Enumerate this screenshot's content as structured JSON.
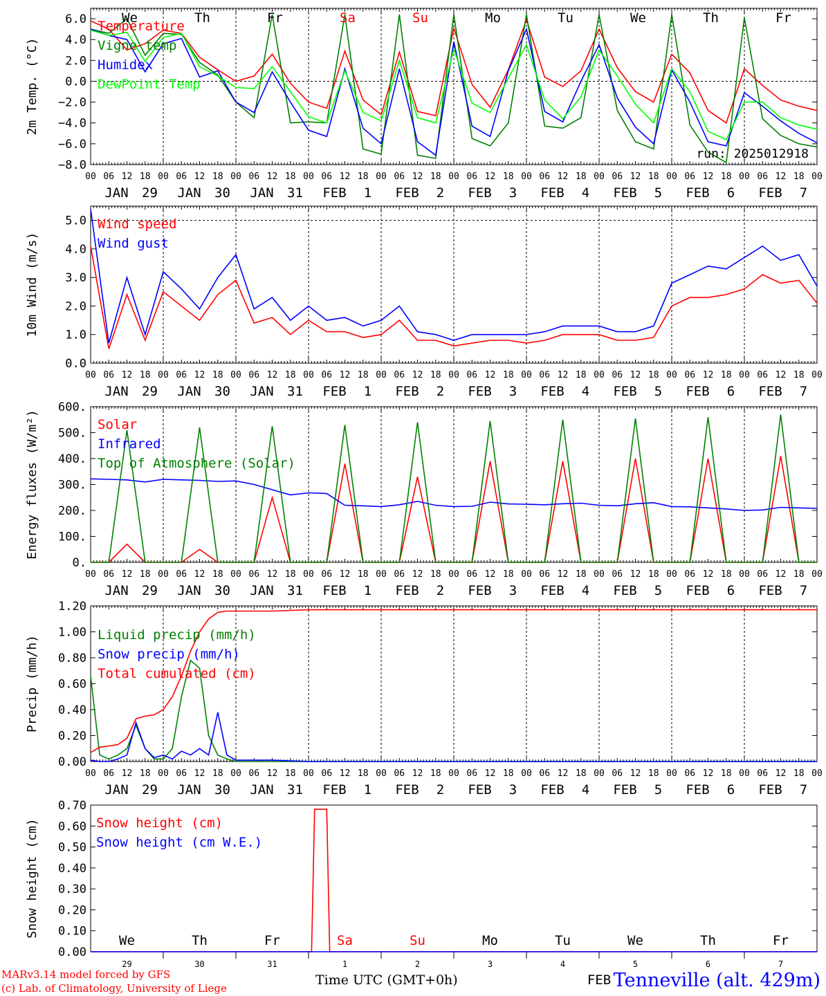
{
  "chart_data": [
    {
      "type": "line",
      "ylabel": "2m Temp. (°C)",
      "ylim": [
        -8,
        7
      ],
      "yticks": [
        "6.0",
        "4.0",
        "2.0",
        "0.0",
        "−2.0",
        "−4.0",
        "−6.0",
        "−8.0"
      ],
      "ytick_values": [
        6,
        4,
        2,
        0,
        -2,
        -4,
        -6,
        -8
      ],
      "ref_lines": [
        0
      ],
      "weekday_labels": [
        "We",
        "Th",
        "Fr",
        "Sa",
        "Su",
        "Mo",
        "Tu",
        "We",
        "Th",
        "Fr"
      ],
      "weekday_colors": [
        "#000000",
        "#000000",
        "#000000",
        "#ff0000",
        "#ff0000",
        "#000000",
        "#000000",
        "#000000",
        "#000000",
        "#000000"
      ],
      "annotation": "run: 2025012918",
      "x_hours": [
        0,
        6,
        12,
        18,
        24,
        30,
        36,
        42,
        48,
        54,
        60,
        66,
        72,
        78,
        84,
        90,
        96,
        102,
        108,
        114,
        120,
        126,
        132,
        138,
        144,
        150,
        156,
        162,
        168,
        174,
        180,
        186,
        192,
        198,
        204,
        210,
        216,
        222,
        228,
        234,
        240
      ],
      "series": [
        {
          "name": "Temperature",
          "color": "#ff0000",
          "values": [
            5.8,
            5.0,
            3.0,
            3.6,
            4.9,
            4.6,
            2.3,
            1.1,
            0.0,
            0.5,
            2.6,
            -0.2,
            -2.0,
            -2.6,
            2.9,
            -1.8,
            -3.2,
            2.8,
            -2.9,
            -3.3,
            5.1,
            -0.3,
            -2.5,
            1.1,
            5.9,
            0.4,
            -0.5,
            1.0,
            5.0,
            1.3,
            -1.0,
            -2.0,
            2.6,
            0.8,
            -2.8,
            -4.0,
            1.2,
            -0.4,
            -1.8,
            -2.4,
            -2.8
          ]
        },
        {
          "name": "Vigne temp",
          "color": "#008000",
          "values": [
            5.0,
            4.6,
            6.0,
            2.5,
            4.6,
            4.5,
            1.8,
            0.6,
            -2.0,
            -3.5,
            6.4,
            -4.0,
            -3.9,
            -4.0,
            6.4,
            -6.5,
            -7.0,
            6.4,
            -7.1,
            -7.4,
            6.4,
            -5.5,
            -6.2,
            -4.0,
            6.4,
            -4.3,
            -4.5,
            -3.5,
            6.4,
            -2.8,
            -5.8,
            -6.5,
            6.4,
            -4.2,
            -6.8,
            -7.8,
            6.1,
            -3.6,
            -5.2,
            -6.0,
            -6.3
          ]
        },
        {
          "name": "Humidex",
          "color": "#0000ff",
          "values": [
            5.0,
            4.4,
            4.0,
            0.9,
            3.6,
            4.1,
            0.4,
            1.0,
            -2.0,
            -3.0,
            0.9,
            -2.0,
            -4.7,
            -5.3,
            1.2,
            -4.5,
            -6.0,
            1.2,
            -5.8,
            -7.1,
            3.8,
            -4.3,
            -5.3,
            1.0,
            5.0,
            -2.9,
            -3.9,
            0.0,
            3.5,
            -1.6,
            -4.4,
            -6.0,
            1.1,
            -2.0,
            -5.8,
            -6.2,
            -1.1,
            -2.4,
            -3.8,
            -5.0,
            -5.9
          ]
        },
        {
          "name": "DewPoint Temp",
          "color": "#00ff00",
          "values": [
            4.9,
            4.4,
            4.7,
            1.9,
            4.2,
            4.6,
            1.4,
            0.5,
            -0.6,
            -0.7,
            1.4,
            -1.0,
            -3.4,
            -4.0,
            1.0,
            -3.0,
            -3.8,
            2.0,
            -3.5,
            -4.0,
            3.1,
            -2.1,
            -3.0,
            0.3,
            3.5,
            -1.8,
            -3.6,
            -1.5,
            3.0,
            0.5,
            -2.2,
            -4.0,
            1.2,
            -1.0,
            -4.8,
            -5.6,
            -2.0,
            -2.0,
            -3.5,
            -4.2,
            -4.6
          ]
        }
      ],
      "days": [
        {
          "month": "JAN",
          "day": "29"
        },
        {
          "month": "JAN",
          "day": "30"
        },
        {
          "month": "JAN",
          "day": "31"
        },
        {
          "month": "FEB",
          "day": "1"
        },
        {
          "month": "FEB",
          "day": "2"
        },
        {
          "month": "FEB",
          "day": "3"
        },
        {
          "month": "FEB",
          "day": "4"
        },
        {
          "month": "FEB",
          "day": "5"
        },
        {
          "month": "FEB",
          "day": "6"
        },
        {
          "month": "FEB",
          "day": "7"
        }
      ]
    },
    {
      "type": "line",
      "ylabel": "10m Wind (m/s)",
      "ylim": [
        0,
        5.5
      ],
      "yticks": [
        "5.0",
        "4.0",
        "3.0",
        "2.0",
        "1.0",
        "0.0"
      ],
      "ytick_values": [
        5,
        4,
        3,
        2,
        1,
        0
      ],
      "ref_lines": [
        5
      ],
      "x_hours": [
        0,
        6,
        12,
        18,
        24,
        30,
        36,
        42,
        48,
        54,
        60,
        66,
        72,
        78,
        84,
        90,
        96,
        102,
        108,
        114,
        120,
        126,
        132,
        138,
        144,
        150,
        156,
        162,
        168,
        174,
        180,
        186,
        192,
        198,
        204,
        210,
        216,
        222,
        228,
        234,
        240
      ],
      "series": [
        {
          "name": "Wind speed",
          "color": "#ff0000",
          "values": [
            4.1,
            0.5,
            2.4,
            0.8,
            2.5,
            2.0,
            1.5,
            2.4,
            2.9,
            1.4,
            1.6,
            1.0,
            1.5,
            1.1,
            1.1,
            0.9,
            1.0,
            1.5,
            0.8,
            0.8,
            0.6,
            0.7,
            0.8,
            0.8,
            0.7,
            0.8,
            1.0,
            1.0,
            1.0,
            0.8,
            0.8,
            0.9,
            2.0,
            2.3,
            2.3,
            2.4,
            2.6,
            3.1,
            2.8,
            2.9,
            2.1
          ]
        },
        {
          "name": "Wind gust",
          "color": "#0000ff",
          "values": [
            5.4,
            0.7,
            3.0,
            1.0,
            3.2,
            2.6,
            1.9,
            3.0,
            3.8,
            1.9,
            2.3,
            1.5,
            2.0,
            1.5,
            1.6,
            1.3,
            1.5,
            2.0,
            1.1,
            1.0,
            0.8,
            1.0,
            1.0,
            1.0,
            1.0,
            1.1,
            1.3,
            1.3,
            1.3,
            1.1,
            1.1,
            1.3,
            2.8,
            3.1,
            3.4,
            3.3,
            3.7,
            4.1,
            3.6,
            3.8,
            2.7
          ]
        }
      ],
      "days": [
        {
          "month": "JAN",
          "day": "29"
        },
        {
          "month": "JAN",
          "day": "30"
        },
        {
          "month": "JAN",
          "day": "31"
        },
        {
          "month": "FEB",
          "day": "1"
        },
        {
          "month": "FEB",
          "day": "2"
        },
        {
          "month": "FEB",
          "day": "3"
        },
        {
          "month": "FEB",
          "day": "4"
        },
        {
          "month": "FEB",
          "day": "5"
        },
        {
          "month": "FEB",
          "day": "6"
        },
        {
          "month": "FEB",
          "day": "7"
        }
      ]
    },
    {
      "type": "line",
      "ylabel": "Energy fluxes (W/m²)",
      "ylim": [
        0,
        600
      ],
      "yticks": [
        "600.",
        "500.",
        "400.",
        "300.",
        "200.",
        "100.",
        "0."
      ],
      "ytick_values": [
        600,
        500,
        400,
        300,
        200,
        100,
        0
      ],
      "ref_lines": [],
      "x_hours": [
        0,
        6,
        12,
        18,
        24,
        30,
        36,
        42,
        48,
        54,
        60,
        66,
        72,
        78,
        84,
        90,
        96,
        102,
        108,
        114,
        120,
        126,
        132,
        138,
        144,
        150,
        156,
        162,
        168,
        174,
        180,
        186,
        192,
        198,
        204,
        210,
        216,
        222,
        228,
        234,
        240
      ],
      "series": [
        {
          "name": "Solar",
          "color": "#ff0000",
          "values": [
            0,
            0,
            70,
            0,
            0,
            0,
            50,
            0,
            0,
            0,
            250,
            0,
            0,
            0,
            380,
            0,
            0,
            0,
            330,
            0,
            0,
            0,
            390,
            0,
            0,
            0,
            390,
            0,
            0,
            0,
            400,
            0,
            0,
            0,
            400,
            0,
            0,
            0,
            410,
            0,
            0
          ]
        },
        {
          "name": "Infrared",
          "color": "#0000ff",
          "values": [
            322,
            320,
            318,
            310,
            320,
            318,
            316,
            312,
            314,
            300,
            280,
            260,
            268,
            265,
            220,
            218,
            215,
            222,
            235,
            220,
            215,
            216,
            232,
            225,
            224,
            222,
            226,
            228,
            220,
            218,
            226,
            230,
            215,
            214,
            210,
            206,
            200,
            202,
            212,
            210,
            208
          ]
        },
        {
          "name": "Top of Atmosphere (Solar)",
          "color": "#008000",
          "values": [
            0,
            0,
            510,
            0,
            0,
            0,
            520,
            0,
            0,
            0,
            525,
            0,
            0,
            0,
            530,
            0,
            0,
            0,
            540,
            0,
            0,
            0,
            545,
            0,
            0,
            0,
            550,
            0,
            0,
            0,
            555,
            0,
            0,
            0,
            560,
            0,
            0,
            0,
            570,
            0,
            0
          ]
        }
      ],
      "days": [
        {
          "month": "JAN",
          "day": "29"
        },
        {
          "month": "JAN",
          "day": "30"
        },
        {
          "month": "JAN",
          "day": "31"
        },
        {
          "month": "FEB",
          "day": "1"
        },
        {
          "month": "FEB",
          "day": "2"
        },
        {
          "month": "FEB",
          "day": "3"
        },
        {
          "month": "FEB",
          "day": "4"
        },
        {
          "month": "FEB",
          "day": "5"
        },
        {
          "month": "FEB",
          "day": "6"
        },
        {
          "month": "FEB",
          "day": "7"
        }
      ]
    },
    {
      "type": "line",
      "ylabel": "Precip (mm/h)",
      "ylim": [
        0,
        1.2
      ],
      "yticks": [
        "1.20",
        "1.00",
        "0.80",
        "0.60",
        "0.40",
        "0.20",
        "0.00"
      ],
      "ytick_values": [
        1.2,
        1.0,
        0.8,
        0.6,
        0.4,
        0.2,
        0.0
      ],
      "ref_lines": [],
      "x_hours": [
        0,
        3,
        6,
        9,
        12,
        15,
        18,
        21,
        24,
        27,
        30,
        33,
        36,
        39,
        42,
        45,
        48,
        54,
        60,
        72,
        96,
        240
      ],
      "series": [
        {
          "name": "Liquid precip (mm/h)",
          "color": "#008000",
          "values": [
            0.66,
            0.05,
            0.02,
            0.05,
            0.1,
            0.28,
            0.1,
            0.02,
            0.02,
            0.1,
            0.5,
            0.78,
            0.72,
            0.2,
            0.05,
            0.02,
            0.0,
            0.0,
            0.0,
            0.0,
            0.0,
            0.0
          ]
        },
        {
          "name": "Snow precip (mm/h)",
          "color": "#0000ff",
          "values": [
            0.01,
            0.0,
            0.0,
            0.02,
            0.05,
            0.3,
            0.1,
            0.03,
            0.05,
            0.02,
            0.08,
            0.05,
            0.1,
            0.05,
            0.38,
            0.05,
            0.01,
            0.01,
            0.01,
            0.0,
            0.0,
            0.0
          ]
        },
        {
          "name": "Total cumulated (cm)",
          "color": "#ff0000",
          "values": [
            0.07,
            0.11,
            0.12,
            0.13,
            0.18,
            0.33,
            0.35,
            0.36,
            0.4,
            0.5,
            0.66,
            0.85,
            1.0,
            1.1,
            1.15,
            1.16,
            1.16,
            1.16,
            1.16,
            1.17,
            1.17,
            1.17
          ]
        }
      ],
      "days": [
        {
          "month": "JAN",
          "day": "29"
        },
        {
          "month": "JAN",
          "day": "30"
        },
        {
          "month": "JAN",
          "day": "31"
        },
        {
          "month": "FEB",
          "day": "1"
        },
        {
          "month": "FEB",
          "day": "2"
        },
        {
          "month": "FEB",
          "day": "3"
        },
        {
          "month": "FEB",
          "day": "4"
        },
        {
          "month": "FEB",
          "day": "5"
        },
        {
          "month": "FEB",
          "day": "6"
        },
        {
          "month": "FEB",
          "day": "7"
        }
      ]
    },
    {
      "type": "line",
      "ylabel": "Snow height (cm)",
      "ylim": [
        0,
        0.7
      ],
      "yticks": [
        "0.70",
        "0.60",
        "0.50",
        "0.40",
        "0.30",
        "0.20",
        "0.10",
        "0.00"
      ],
      "ytick_values": [
        0.7,
        0.6,
        0.5,
        0.4,
        0.3,
        0.2,
        0.1,
        0.0
      ],
      "ref_lines": [],
      "x_hours": [
        0,
        73,
        74,
        78,
        79,
        240
      ],
      "series": [
        {
          "name": "Snow height (cm)",
          "color": "#ff0000",
          "values": [
            0.0,
            0.0,
            0.68,
            0.68,
            0.0,
            0.0
          ]
        },
        {
          "name": "Snow height (cm W.E.)",
          "color": "#0000ff",
          "values": [
            0.0,
            0.0,
            0.0,
            0.0,
            0.0,
            0.0
          ]
        }
      ],
      "weekday_labels": [
        "We",
        "Th",
        "Fr",
        "Sa",
        "Su",
        "Mo",
        "Tu",
        "We",
        "Th",
        "Fr"
      ],
      "weekday_colors": [
        "#000000",
        "#000000",
        "#000000",
        "#ff0000",
        "#ff0000",
        "#000000",
        "#000000",
        "#000000",
        "#000000",
        "#000000"
      ],
      "day_numbers": [
        "29",
        "30",
        "31",
        "1",
        "2",
        "3",
        "4",
        "5",
        "6",
        "7"
      ],
      "month_label": "FEB",
      "xlabel": "Time UTC (GMT+0h)"
    }
  ],
  "hour_tick_labels": [
    "00",
    "06",
    "12",
    "18"
  ],
  "footer": {
    "credit_line1": "MARv3.14 model forced by GFS",
    "credit_line2": "(c) Lab. of Climatology, University of Liege",
    "xlabel": "Time UTC (GMT+0h)",
    "station": "Tenneville (alt. 429m)"
  }
}
